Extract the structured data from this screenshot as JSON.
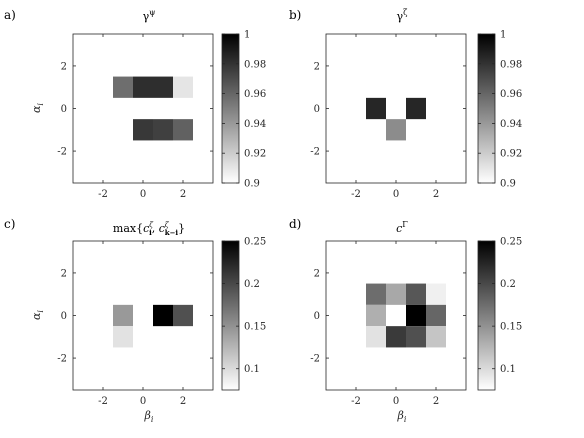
{
  "chart_data": [
    {
      "type": "heatmap",
      "panel_label": "a)",
      "title": "γ^ψ",
      "title_base": "γ",
      "title_sup": "ψ",
      "xlabel": "",
      "ylabel": "α_i",
      "ylabel_base": "α",
      "ylabel_sub": "i",
      "xlim": [
        -3.5,
        3.5
      ],
      "ylim": [
        -3.5,
        3.5
      ],
      "xticks": [
        "-2",
        "0",
        "2"
      ],
      "yticks": [
        "2",
        "0",
        "-2"
      ],
      "xtick_values": [
        -2,
        0,
        2
      ],
      "ytick_values": [
        2,
        0,
        -2
      ],
      "cells": [
        {
          "beta": -1,
          "alpha": 1,
          "value": 0.957
        },
        {
          "beta": 0,
          "alpha": 1,
          "value": 0.982
        },
        {
          "beta": 1,
          "alpha": 1,
          "value": 0.982
        },
        {
          "beta": 2,
          "alpha": 1,
          "value": 0.91
        },
        {
          "beta": 0,
          "alpha": -1,
          "value": 0.978
        },
        {
          "beta": 1,
          "alpha": -1,
          "value": 0.975
        },
        {
          "beta": 2,
          "alpha": -1,
          "value": 0.962
        }
      ],
      "colorbar": {
        "min": 0.9,
        "max": 1,
        "ticks": [
          "1",
          "0.98",
          "0.96",
          "0.94",
          "0.92",
          "0.9"
        ],
        "tick_values": [
          1,
          0.98,
          0.96,
          0.94,
          0.92,
          0.9
        ]
      }
    },
    {
      "type": "heatmap",
      "panel_label": "b)",
      "title": "γ^ζ",
      "title_base": "γ",
      "title_sup": "ζ",
      "xlabel": "",
      "ylabel": "",
      "xlim": [
        -3.5,
        3.5
      ],
      "ylim": [
        -3.5,
        3.5
      ],
      "xticks": [
        "-2",
        "0",
        "2"
      ],
      "yticks": [
        "2",
        "0",
        "-2"
      ],
      "xtick_values": [
        -2,
        0,
        2
      ],
      "ytick_values": [
        2,
        0,
        -2
      ],
      "cells": [
        {
          "beta": -1,
          "alpha": 0,
          "value": 0.985
        },
        {
          "beta": 1,
          "alpha": 0,
          "value": 0.985
        },
        {
          "beta": 0,
          "alpha": -1,
          "value": 0.945
        }
      ],
      "colorbar": {
        "min": 0.9,
        "max": 1,
        "ticks": [
          "1",
          "0.98",
          "0.96",
          "0.94",
          "0.92",
          "0.9"
        ],
        "tick_values": [
          1,
          0.98,
          0.96,
          0.94,
          0.92,
          0.9
        ]
      }
    },
    {
      "type": "heatmap",
      "panel_label": "c)",
      "title": "max{c_i^ζ, c_{k−i}^ζ}",
      "title_parts": {
        "pre": "max{",
        "c1": "c",
        "sup1": "ζ",
        "sub1": "i",
        "sep": ", ",
        "c2": "c",
        "sup2": "ζ",
        "sub2": "k−i",
        "post": "}"
      },
      "xlabel": "β_i",
      "ylabel": "α_i",
      "xlabel_base": "β",
      "xlabel_sub": "i",
      "ylabel_base": "α",
      "ylabel_sub": "i",
      "xlim": [
        -3.5,
        3.5
      ],
      "ylim": [
        -3.5,
        3.5
      ],
      "xticks": [
        "-2",
        "0",
        "2"
      ],
      "yticks": [
        "2",
        "0",
        "-2"
      ],
      "xtick_values": [
        -2,
        0,
        2
      ],
      "ytick_values": [
        2,
        0,
        -2
      ],
      "cells": [
        {
          "beta": -1,
          "alpha": 0,
          "value": 0.145
        },
        {
          "beta": -1,
          "alpha": -1,
          "value": 0.095
        },
        {
          "beta": 1,
          "alpha": 0,
          "value": 0.25
        },
        {
          "beta": 2,
          "alpha": 0,
          "value": 0.195
        }
      ],
      "colorbar": {
        "min": 0.075,
        "max": 0.25,
        "ticks": [
          "0.25",
          "0.2",
          "0.15",
          "0.1"
        ],
        "tick_values": [
          0.25,
          0.2,
          0.15,
          0.1
        ]
      }
    },
    {
      "type": "heatmap",
      "panel_label": "d)",
      "title": "c^Γ",
      "title_base": "c",
      "title_sup": "Γ",
      "xlabel": "β_i",
      "ylabel": "",
      "xlabel_base": "β",
      "xlabel_sub": "i",
      "xlim": [
        -3.5,
        3.5
      ],
      "ylim": [
        -3.5,
        3.5
      ],
      "xticks": [
        "-2",
        "0",
        "2"
      ],
      "yticks": [
        "2",
        "0",
        "-2"
      ],
      "xtick_values": [
        -2,
        0,
        2
      ],
      "ytick_values": [
        2,
        0,
        -2
      ],
      "cells": [
        {
          "beta": -1,
          "alpha": 1,
          "value": 0.175
        },
        {
          "beta": 0,
          "alpha": 1,
          "value": 0.135
        },
        {
          "beta": 1,
          "alpha": 1,
          "value": 0.19
        },
        {
          "beta": 2,
          "alpha": 1,
          "value": 0.085
        },
        {
          "beta": -1,
          "alpha": 0,
          "value": 0.13
        },
        {
          "beta": 1,
          "alpha": 0,
          "value": 0.25
        },
        {
          "beta": 2,
          "alpha": 0,
          "value": 0.18
        },
        {
          "beta": -1,
          "alpha": -1,
          "value": 0.095
        },
        {
          "beta": 0,
          "alpha": -1,
          "value": 0.21
        },
        {
          "beta": 1,
          "alpha": -1,
          "value": 0.195
        },
        {
          "beta": 2,
          "alpha": -1,
          "value": 0.115
        }
      ],
      "colorbar": {
        "min": 0.075,
        "max": 0.25,
        "ticks": [
          "0.25",
          "0.2",
          "0.15",
          "0.1"
        ],
        "tick_values": [
          0.25,
          0.2,
          0.15,
          0.1
        ]
      }
    }
  ]
}
